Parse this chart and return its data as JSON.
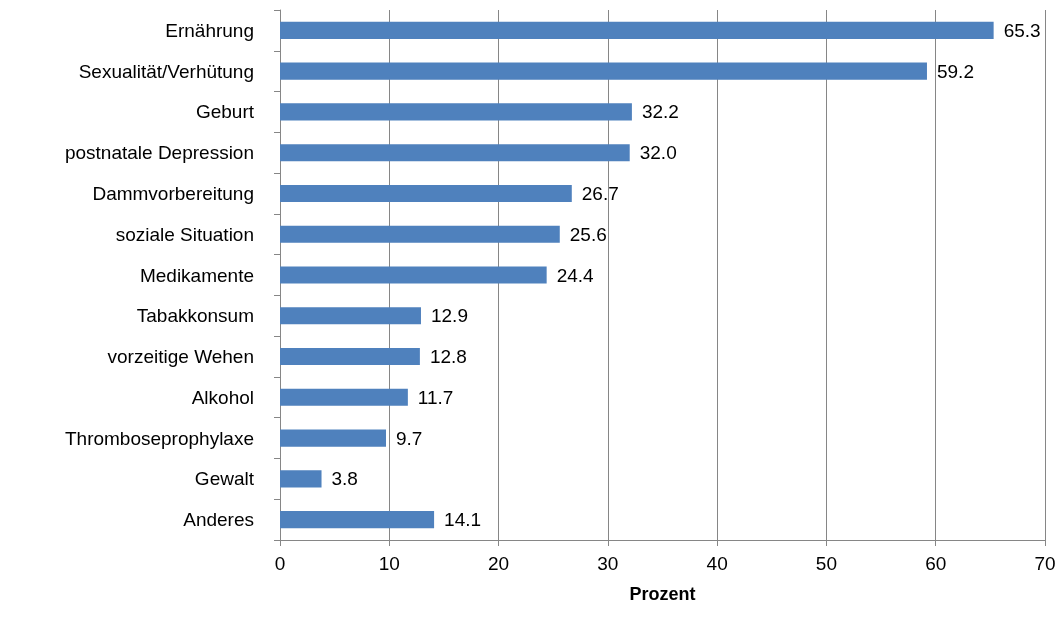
{
  "chart_data": {
    "type": "bar",
    "orientation": "horizontal",
    "xlabel": "Prozent",
    "categories": [
      "Ernährung",
      "Sexualität/Verhütung",
      "Geburt",
      "postnatale Depression",
      "Dammvorbereitung",
      "soziale Situation",
      "Medikamente",
      "Tabakkonsum",
      "vorzeitige Wehen",
      "Alkohol",
      "Thromboseprophylaxe",
      "Gewalt",
      "Anderes"
    ],
    "values": [
      65.3,
      59.2,
      32.2,
      32.0,
      26.7,
      25.6,
      24.4,
      12.9,
      12.8,
      11.7,
      9.7,
      3.8,
      14.1
    ],
    "value_labels": [
      "65.3",
      "59.2",
      "32.2",
      "32.0",
      "26.7",
      "25.6",
      "24.4",
      "12.9",
      "12.8",
      "11.7",
      "9.7",
      "3.8",
      "14.1"
    ],
    "color": "#4f81bd",
    "xlim": [
      0,
      70
    ],
    "xticks": [
      0,
      10,
      20,
      30,
      40,
      50,
      60,
      70
    ],
    "grid": "x"
  }
}
